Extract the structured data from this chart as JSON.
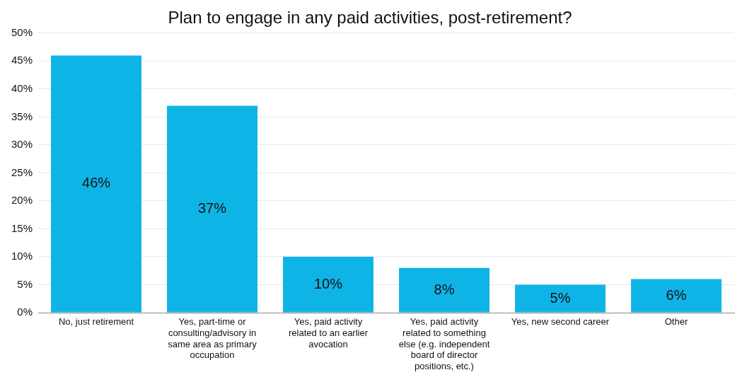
{
  "chart_data": {
    "type": "bar",
    "title": "Plan to engage in any paid activities, post-retirement?",
    "categories": [
      "No, just retirement",
      "Yes, part-time or consulting/advisory in same area as primary occupation",
      "Yes, paid activity related to an earlier avocation",
      "Yes, paid activity related to something else (e.g. independent board of director positions, etc.)",
      "Yes, new second career",
      "Other"
    ],
    "values": [
      46,
      37,
      10,
      8,
      5,
      6
    ],
    "value_labels": [
      "46%",
      "37%",
      "10%",
      "8%",
      "5%",
      "6%"
    ],
    "color": "#0fb4e6",
    "ylim": [
      0,
      50
    ],
    "yticks": [
      {
        "value": 0,
        "label": "0%"
      },
      {
        "value": 5,
        "label": "5%"
      },
      {
        "value": 10,
        "label": "10%"
      },
      {
        "value": 15,
        "label": "15%"
      },
      {
        "value": 20,
        "label": "20%"
      },
      {
        "value": 25,
        "label": "25%"
      },
      {
        "value": 30,
        "label": "30%"
      },
      {
        "value": 35,
        "label": "35%"
      },
      {
        "value": 40,
        "label": "40%"
      },
      {
        "value": 45,
        "label": "45%"
      },
      {
        "value": 50,
        "label": "50%"
      }
    ],
    "grid": "y",
    "legend": false
  }
}
